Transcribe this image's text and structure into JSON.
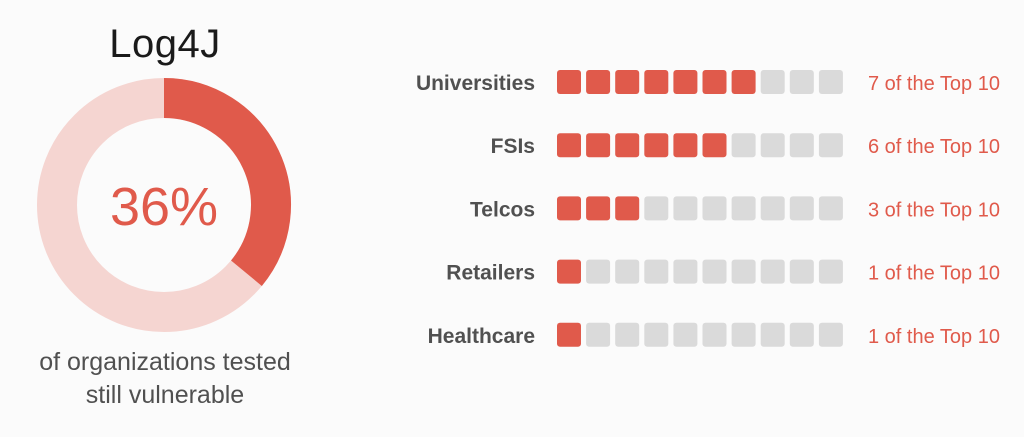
{
  "colors": {
    "accent": "#e05a4b",
    "accent_light": "#f5d5d1",
    "empty_block": "#dadada",
    "label": "#505050"
  },
  "donut": {
    "title": "Log4J",
    "percent_label": "36%",
    "caption_line1": "of organizations tested",
    "caption_line2": "still vulnerable"
  },
  "chart_data": [
    {
      "type": "pie",
      "title": "Log4J",
      "values": [
        36,
        64
      ],
      "center_label": "36%",
      "caption": "of organizations tested still vulnerable"
    },
    {
      "type": "bar",
      "categories": [
        "Universities",
        "FSIs",
        "Telcos",
        "Retailers",
        "Healthcare"
      ],
      "values": [
        7,
        6,
        3,
        1,
        1
      ],
      "max": 10,
      "value_labels": [
        "7 of the Top 10",
        "6 of the Top 10",
        "3 of the Top 10",
        "1 of the Top 10",
        "1 of the Top 10"
      ]
    }
  ]
}
